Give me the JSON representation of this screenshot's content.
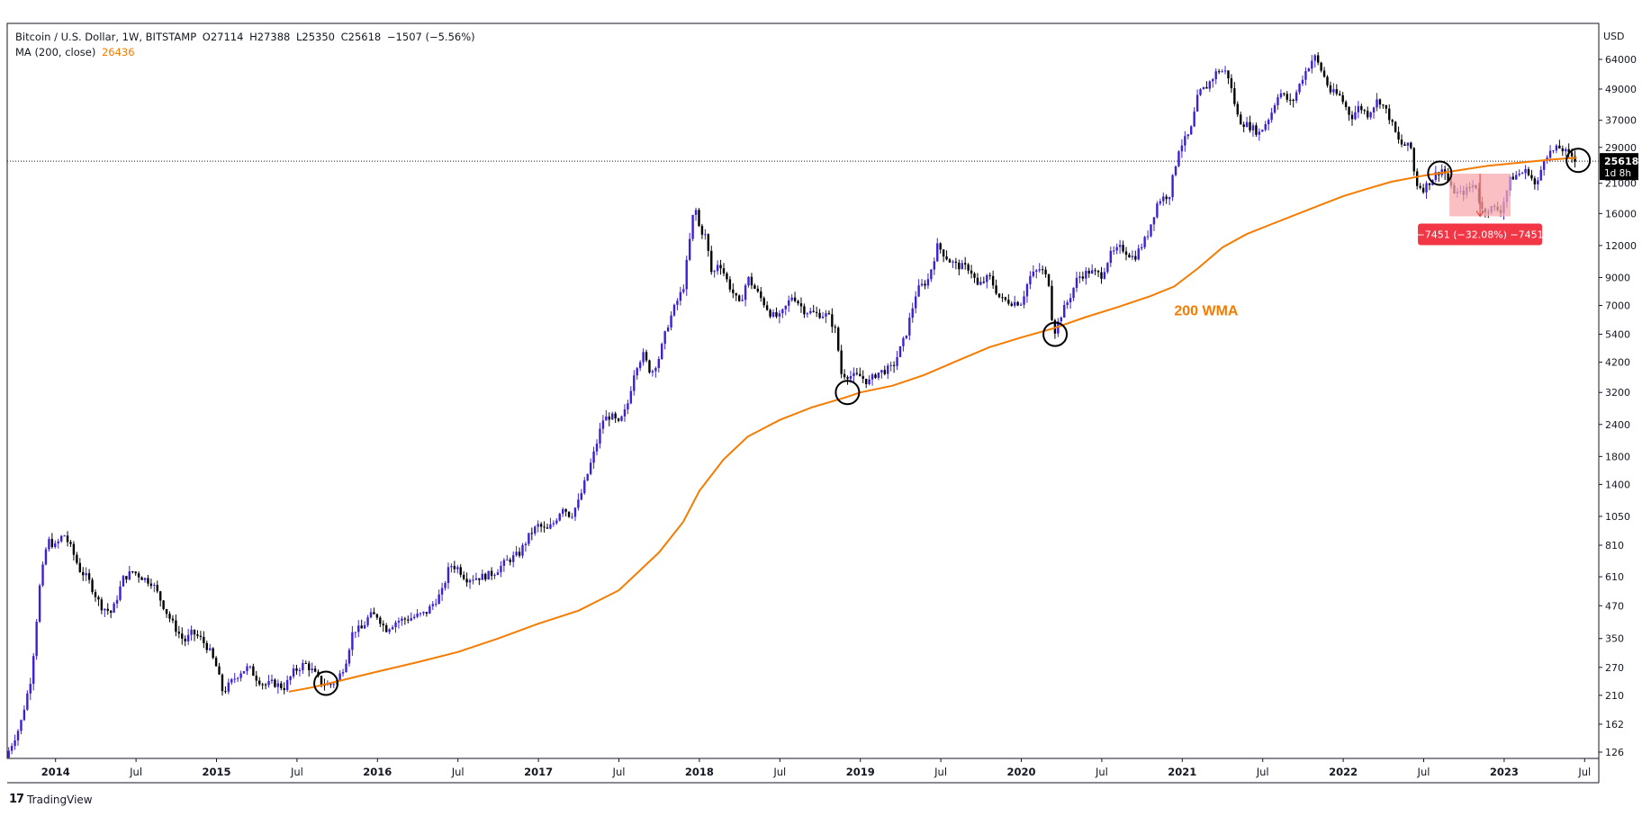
{
  "legend": {
    "title": "Bitcoin / U.S. Dollar, 1W, BITSTAMP",
    "open": "O27114",
    "high": "H27388",
    "low": "L25350",
    "close": "C25618",
    "change": "−1507 (−5.56%)",
    "ma_label": "MA (200, close)",
    "ma_value": "26436"
  },
  "price_label": {
    "value": "25618",
    "countdown": "1d 8h"
  },
  "annotation_wma": "200 WMA",
  "measure_label": "−7451 (−32.08%) −7451",
  "branding": {
    "mark": "17",
    "name": "TradingView"
  },
  "colors": {
    "up": "#3d1fd6",
    "down": "#000000",
    "ma": "#f57c00",
    "measure_fill": "#f7a9ad",
    "measure_label_bg": "#f23645"
  },
  "chart_data": {
    "type": "line",
    "title": "Bitcoin / U.S. Dollar, 1W, BITSTAMP",
    "xlabel": "",
    "ylabel": "USD",
    "y_scale": "log",
    "ylim": [
      120,
      80000
    ],
    "xlim": [
      "2013-08",
      "2023-08"
    ],
    "y_ticks": [
      126,
      162,
      210,
      270,
      350,
      470,
      610,
      810,
      1050,
      1400,
      1800,
      2400,
      3200,
      4200,
      5400,
      7000,
      9000,
      12000,
      16000,
      21000,
      29000,
      37000,
      49000,
      64000
    ],
    "x_ticks": [
      {
        "label": "2014",
        "t": 2014.0,
        "year": true
      },
      {
        "label": "Jul",
        "t": 2014.5,
        "year": false
      },
      {
        "label": "2015",
        "t": 2015.0,
        "year": true
      },
      {
        "label": "Jul",
        "t": 2015.5,
        "year": false
      },
      {
        "label": "2016",
        "t": 2016.0,
        "year": true
      },
      {
        "label": "Jul",
        "t": 2016.5,
        "year": false
      },
      {
        "label": "2017",
        "t": 2017.0,
        "year": true
      },
      {
        "label": "Jul",
        "t": 2017.5,
        "year": false
      },
      {
        "label": "2018",
        "t": 2018.0,
        "year": true
      },
      {
        "label": "Jul",
        "t": 2018.5,
        "year": false
      },
      {
        "label": "2019",
        "t": 2019.0,
        "year": true
      },
      {
        "label": "Jul",
        "t": 2019.5,
        "year": false
      },
      {
        "label": "2020",
        "t": 2020.0,
        "year": true
      },
      {
        "label": "Jul",
        "t": 2020.5,
        "year": false
      },
      {
        "label": "2021",
        "t": 2021.0,
        "year": true
      },
      {
        "label": "Jul",
        "t": 2021.5,
        "year": false
      },
      {
        "label": "2022",
        "t": 2022.0,
        "year": true
      },
      {
        "label": "Jul",
        "t": 2022.5,
        "year": false
      },
      {
        "label": "2023",
        "t": 2023.0,
        "year": true
      },
      {
        "label": "Jul",
        "t": 2023.5,
        "year": false
      }
    ],
    "series": [
      {
        "name": "Bitcoin / U.S. Dollar",
        "type": "close",
        "points": [
          [
            2013.69,
            120
          ],
          [
            2013.78,
            160
          ],
          [
            2013.85,
            250
          ],
          [
            2013.9,
            550
          ],
          [
            2013.95,
            850
          ],
          [
            2014.0,
            800
          ],
          [
            2014.05,
            900
          ],
          [
            2014.1,
            780
          ],
          [
            2014.15,
            650
          ],
          [
            2014.2,
            600
          ],
          [
            2014.28,
            470
          ],
          [
            2014.35,
            440
          ],
          [
            2014.42,
            600
          ],
          [
            2014.48,
            640
          ],
          [
            2014.55,
            600
          ],
          [
            2014.6,
            580
          ],
          [
            2014.65,
            500
          ],
          [
            2014.7,
            430
          ],
          [
            2014.75,
            380
          ],
          [
            2014.8,
            340
          ],
          [
            2014.85,
            370
          ],
          [
            2014.9,
            350
          ],
          [
            2014.95,
            320
          ],
          [
            2015.0,
            270
          ],
          [
            2015.04,
            215
          ],
          [
            2015.1,
            240
          ],
          [
            2015.15,
            260
          ],
          [
            2015.2,
            270
          ],
          [
            2015.25,
            245
          ],
          [
            2015.3,
            230
          ],
          [
            2015.35,
            235
          ],
          [
            2015.42,
            225
          ],
          [
            2015.48,
            260
          ],
          [
            2015.55,
            280
          ],
          [
            2015.6,
            260
          ],
          [
            2015.65,
            235
          ],
          [
            2015.7,
            230
          ],
          [
            2015.75,
            240
          ],
          [
            2015.8,
            280
          ],
          [
            2015.85,
            380
          ],
          [
            2015.9,
            380
          ],
          [
            2015.95,
            430
          ],
          [
            2016.0,
            430
          ],
          [
            2016.05,
            380
          ],
          [
            2016.12,
            410
          ],
          [
            2016.2,
            420
          ],
          [
            2016.3,
            440
          ],
          [
            2016.4,
            530
          ],
          [
            2016.45,
            680
          ],
          [
            2016.5,
            660
          ],
          [
            2016.55,
            600
          ],
          [
            2016.65,
            610
          ],
          [
            2016.72,
            630
          ],
          [
            2016.8,
            700
          ],
          [
            2016.88,
            750
          ],
          [
            2016.95,
            900
          ],
          [
            2017.0,
            970
          ],
          [
            2017.05,
            920
          ],
          [
            2017.1,
            1000
          ],
          [
            2017.15,
            1150
          ],
          [
            2017.2,
            1050
          ],
          [
            2017.25,
            1200
          ],
          [
            2017.3,
            1500
          ],
          [
            2017.35,
            1900
          ],
          [
            2017.4,
            2500
          ],
          [
            2017.45,
            2600
          ],
          [
            2017.5,
            2400
          ],
          [
            2017.55,
            2800
          ],
          [
            2017.6,
            4000
          ],
          [
            2017.65,
            4500
          ],
          [
            2017.7,
            3800
          ],
          [
            2017.75,
            4400
          ],
          [
            2017.8,
            5800
          ],
          [
            2017.85,
            7000
          ],
          [
            2017.9,
            8200
          ],
          [
            2017.95,
            14000
          ],
          [
            2017.97,
            17500
          ],
          [
            2018.0,
            14000
          ],
          [
            2018.04,
            13000
          ],
          [
            2018.08,
            9000
          ],
          [
            2018.12,
            10500
          ],
          [
            2018.18,
            8500
          ],
          [
            2018.25,
            7000
          ],
          [
            2018.3,
            9000
          ],
          [
            2018.38,
            7500
          ],
          [
            2018.45,
            6400
          ],
          [
            2018.5,
            6300
          ],
          [
            2018.58,
            7700
          ],
          [
            2018.65,
            6700
          ],
          [
            2018.72,
            6500
          ],
          [
            2018.8,
            6400
          ],
          [
            2018.85,
            5500
          ],
          [
            2018.88,
            3800
          ],
          [
            2018.95,
            3700
          ],
          [
            2019.0,
            3700
          ],
          [
            2019.05,
            3500
          ],
          [
            2019.1,
            3800
          ],
          [
            2019.2,
            4000
          ],
          [
            2019.28,
            5300
          ],
          [
            2019.35,
            8000
          ],
          [
            2019.42,
            8800
          ],
          [
            2019.48,
            12000
          ],
          [
            2019.55,
            10500
          ],
          [
            2019.6,
            10000
          ],
          [
            2019.68,
            9800
          ],
          [
            2019.73,
            8300
          ],
          [
            2019.8,
            9100
          ],
          [
            2019.87,
            7400
          ],
          [
            2019.95,
            7200
          ],
          [
            2020.0,
            7200
          ],
          [
            2020.05,
            9000
          ],
          [
            2020.12,
            9800
          ],
          [
            2020.17,
            8700
          ],
          [
            2020.2,
            5400
          ],
          [
            2020.25,
            6500
          ],
          [
            2020.3,
            7500
          ],
          [
            2020.35,
            9000
          ],
          [
            2020.42,
            9500
          ],
          [
            2020.5,
            9200
          ],
          [
            2020.55,
            11000
          ],
          [
            2020.62,
            11800
          ],
          [
            2020.7,
            10700
          ],
          [
            2020.78,
            13000
          ],
          [
            2020.85,
            18000
          ],
          [
            2020.92,
            19000
          ],
          [
            2020.98,
            29000
          ],
          [
            2021.05,
            33000
          ],
          [
            2021.1,
            47000
          ],
          [
            2021.15,
            50000
          ],
          [
            2021.22,
            58000
          ],
          [
            2021.28,
            57000
          ],
          [
            2021.35,
            37000
          ],
          [
            2021.42,
            35000
          ],
          [
            2021.48,
            33000
          ],
          [
            2021.55,
            39000
          ],
          [
            2021.6,
            48000
          ],
          [
            2021.68,
            43000
          ],
          [
            2021.75,
            55000
          ],
          [
            2021.82,
            66000
          ],
          [
            2021.87,
            57000
          ],
          [
            2021.92,
            48000
          ],
          [
            2021.98,
            46000
          ],
          [
            2022.05,
            38000
          ],
          [
            2022.1,
            42000
          ],
          [
            2022.15,
            39000
          ],
          [
            2022.22,
            45000
          ],
          [
            2022.28,
            39000
          ],
          [
            2022.35,
            30000
          ],
          [
            2022.42,
            29000
          ],
          [
            2022.45,
            21000
          ],
          [
            2022.5,
            20000
          ],
          [
            2022.58,
            23000
          ],
          [
            2022.62,
            24000
          ],
          [
            2022.67,
            20000
          ],
          [
            2022.72,
            19000
          ],
          [
            2022.78,
            20000
          ],
          [
            2022.82,
            21000
          ],
          [
            2022.86,
            16500
          ],
          [
            2022.92,
            16800
          ],
          [
            2022.98,
            16500
          ],
          [
            2023.04,
            22000
          ],
          [
            2023.1,
            23000
          ],
          [
            2023.15,
            23500
          ],
          [
            2023.2,
            20000
          ],
          [
            2023.25,
            27000
          ],
          [
            2023.3,
            28000
          ],
          [
            2023.35,
            29000
          ],
          [
            2023.4,
            27000
          ],
          [
            2023.43,
            26800
          ],
          [
            2023.45,
            25618
          ]
        ]
      },
      {
        "name": "MA (200, close)",
        "type": "line",
        "points": [
          [
            2015.45,
            217
          ],
          [
            2015.6,
            226
          ],
          [
            2015.75,
            238
          ],
          [
            2016.0,
            260
          ],
          [
            2016.25,
            283
          ],
          [
            2016.5,
            310
          ],
          [
            2016.75,
            350
          ],
          [
            2017.0,
            400
          ],
          [
            2017.25,
            450
          ],
          [
            2017.5,
            540
          ],
          [
            2017.75,
            760
          ],
          [
            2017.9,
            1000
          ],
          [
            2018.0,
            1320
          ],
          [
            2018.15,
            1750
          ],
          [
            2018.3,
            2150
          ],
          [
            2018.5,
            2500
          ],
          [
            2018.7,
            2800
          ],
          [
            2018.9,
            3050
          ],
          [
            2019.0,
            3200
          ],
          [
            2019.2,
            3400
          ],
          [
            2019.4,
            3750
          ],
          [
            2019.6,
            4250
          ],
          [
            2019.8,
            4800
          ],
          [
            2020.0,
            5250
          ],
          [
            2020.2,
            5700
          ],
          [
            2020.4,
            6300
          ],
          [
            2020.6,
            6900
          ],
          [
            2020.8,
            7600
          ],
          [
            2020.95,
            8300
          ],
          [
            2021.1,
            9800
          ],
          [
            2021.25,
            11800
          ],
          [
            2021.4,
            13300
          ],
          [
            2021.55,
            14500
          ],
          [
            2021.7,
            15800
          ],
          [
            2021.85,
            17200
          ],
          [
            2022.0,
            18700
          ],
          [
            2022.15,
            20000
          ],
          [
            2022.3,
            21300
          ],
          [
            2022.5,
            22500
          ],
          [
            2022.7,
            23500
          ],
          [
            2022.9,
            24600
          ],
          [
            2023.1,
            25300
          ],
          [
            2023.3,
            26000
          ],
          [
            2023.45,
            26436
          ]
        ]
      }
    ],
    "highlight_circles": [
      {
        "t": 2015.68,
        "v": 234
      },
      {
        "t": 2018.92,
        "v": 3200
      },
      {
        "t": 2020.21,
        "v": 5400
      },
      {
        "t": 2022.6,
        "v": 23000
      },
      {
        "t": 2023.46,
        "v": 25800
      }
    ],
    "measure": {
      "t0": 2022.66,
      "t1": 2023.04,
      "v_high": 22900,
      "v_low": 15600,
      "label": "−7451 (−32.08%) −7451"
    },
    "last_price_line": 25618,
    "annotations": [
      {
        "text": "200 WMA",
        "t": 2020.95,
        "v": 6400
      }
    ]
  }
}
